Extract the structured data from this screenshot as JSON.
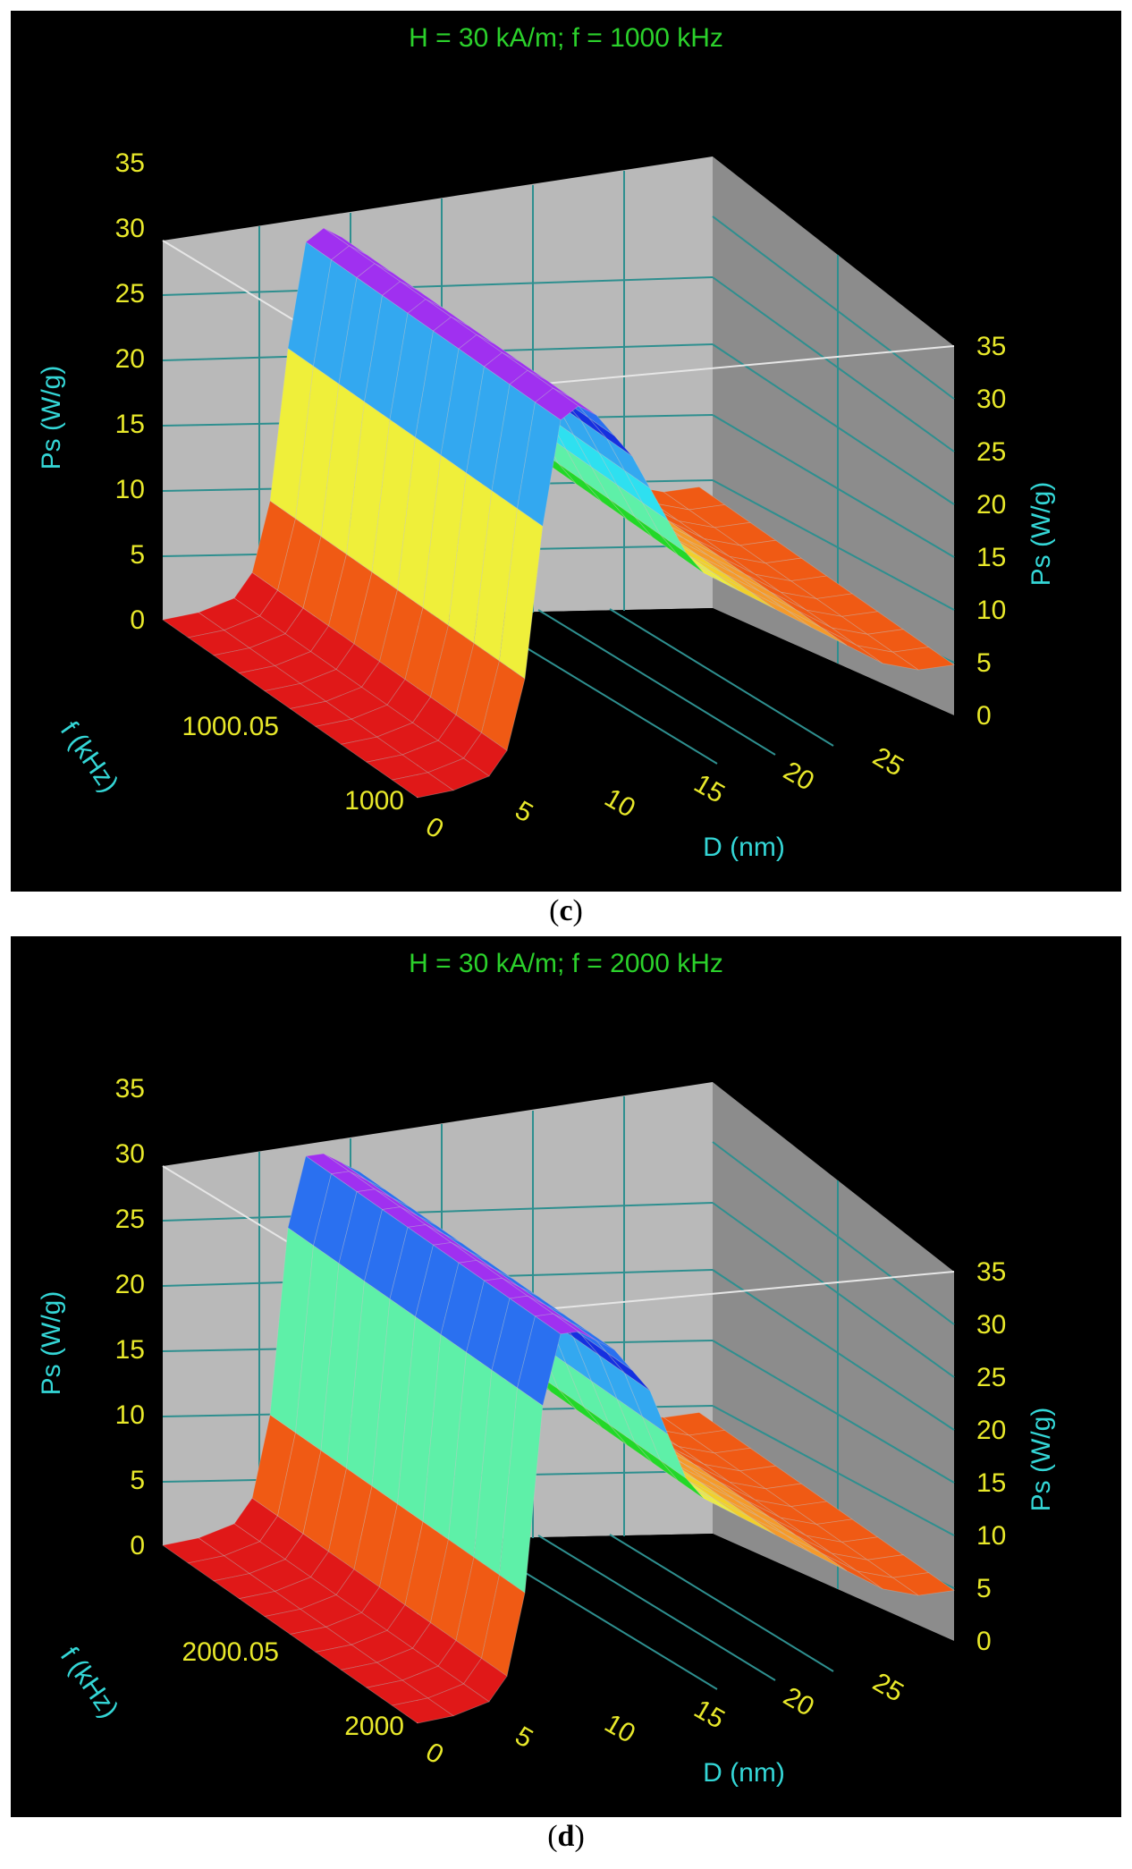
{
  "chart_data": [
    {
      "type": "surface3d",
      "panel": "c",
      "title": "H = 30 kA/m;  f = 1000 kHz",
      "xlabel": "D (nm)",
      "ylabel": "f (kHz)",
      "zlabel": "Ps (W/g)",
      "x_ticks": [
        "0",
        "5",
        "10",
        "15",
        "20",
        "25"
      ],
      "y_ticks": [
        "1000",
        "1000.05"
      ],
      "z_ticks": [
        "0",
        "5",
        "10",
        "15",
        "20",
        "25",
        "30",
        "35"
      ],
      "xlim": [
        0,
        30
      ],
      "ylim": [
        1000,
        1000.1
      ],
      "zlim": [
        0,
        35
      ],
      "surface_profile_D": [
        0,
        2,
        4,
        5,
        6,
        7,
        8,
        9,
        10,
        11,
        12,
        13,
        14,
        15,
        16,
        17,
        18,
        20,
        22,
        24,
        26,
        28,
        30
      ],
      "surface_profile_Ps": [
        0,
        0.2,
        1,
        3,
        9,
        22,
        31,
        32,
        31,
        29,
        27,
        24,
        21,
        18,
        16,
        15,
        14,
        12,
        10,
        8,
        6,
        5,
        5
      ],
      "second_peak": null
    },
    {
      "type": "surface3d",
      "panel": "d",
      "title": "H = 30 kA/m;  f = 2000 kHz",
      "xlabel": "D (nm)",
      "ylabel": "f (kHz)",
      "zlabel": "Ps (W/g)",
      "x_ticks": [
        "0",
        "5",
        "10",
        "15",
        "20",
        "25"
      ],
      "y_ticks": [
        "2000",
        "2000.05"
      ],
      "z_ticks": [
        "0",
        "5",
        "10",
        "15",
        "20",
        "25",
        "30",
        "35"
      ],
      "xlim": [
        0,
        30
      ],
      "ylim": [
        2000,
        2000.1
      ],
      "zlim": [
        0,
        35
      ],
      "surface_profile_D": [
        0,
        2,
        4,
        5,
        6,
        7,
        8,
        9,
        10,
        11,
        12,
        13,
        14,
        15,
        16,
        17,
        18,
        20,
        22,
        24,
        26,
        28,
        30
      ],
      "surface_profile_Ps": [
        0,
        0.2,
        1,
        3,
        10,
        26,
        32,
        32,
        31,
        30,
        28,
        26,
        22,
        18,
        16,
        15,
        14,
        12,
        10,
        8,
        6,
        5,
        5
      ]
    }
  ],
  "captions": {
    "c": "c",
    "d": "d"
  },
  "colors": {
    "background": "#000000",
    "title": "#2bd12b",
    "tick": "#e8e82a",
    "axis_label": "#34d6d6",
    "wall": "#b9b9b9",
    "wall_side": "#8c8c8c",
    "grid": "#2e8f8f"
  }
}
